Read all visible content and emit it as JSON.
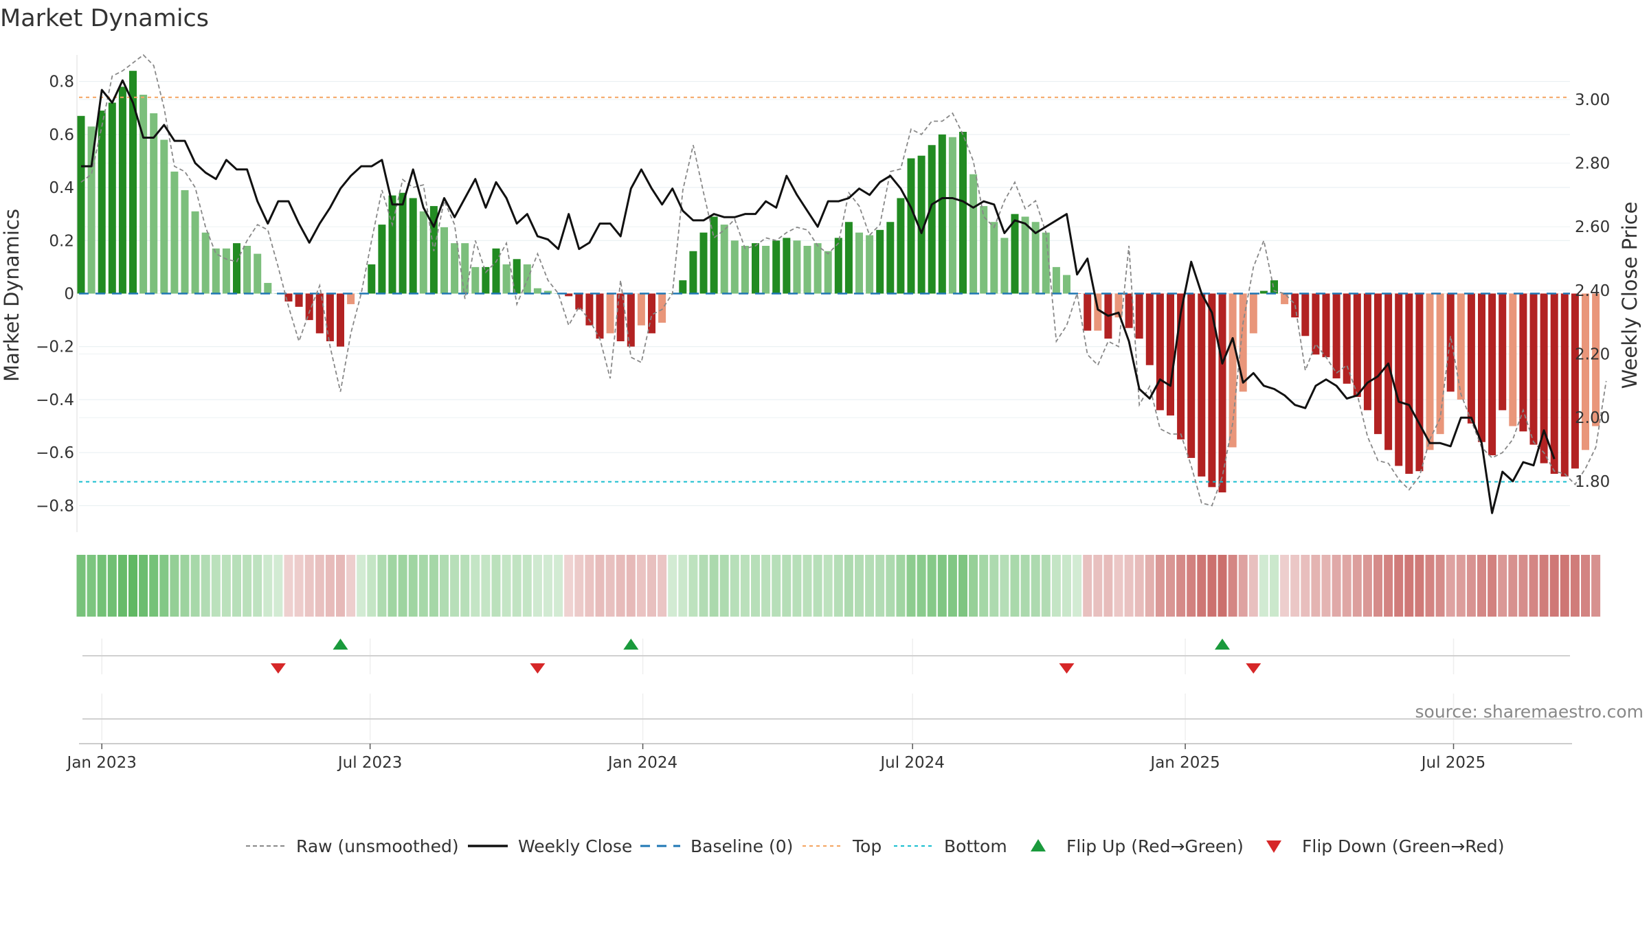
{
  "chart_data": {
    "type": "bar",
    "title": "Market Dynamics",
    "ylabel": "Market Dynamics",
    "ylabel_right": "Weekly Close Price",
    "ylim": [
      -0.9,
      0.9
    ],
    "ylim_right": [
      1.64,
      3.14
    ],
    "yticks": [
      -0.8,
      -0.6,
      -0.4,
      -0.2,
      0,
      0.2,
      0.4,
      0.6,
      0.8
    ],
    "ytick_labels": [
      "−0.8",
      "−0.6",
      "−0.4",
      "−0.2",
      "0",
      "0.2",
      "0.4",
      "0.6",
      "0.8"
    ],
    "yticks_right": [
      1.8,
      2.0,
      2.2,
      2.4,
      2.6,
      2.8,
      3.0
    ],
    "ytick_labels_right": [
      "1.80",
      "2.00",
      "2.20",
      "2.40",
      "2.60",
      "2.80",
      "3.00"
    ],
    "x_ticks": [
      {
        "date": "2023-01-01",
        "label": "Jan 2023"
      },
      {
        "date": "2023-07-01",
        "label": "Jul 2023"
      },
      {
        "date": "2024-01-01",
        "label": "Jan 2024"
      },
      {
        "date": "2024-07-01",
        "label": "Jul 2024"
      },
      {
        "date": "2025-01-01",
        "label": "Jan 2025"
      },
      {
        "date": "2025-07-01",
        "label": "Jul 2025"
      }
    ],
    "start_date": "2022-12-18",
    "week_interval_days": 7,
    "grid": true,
    "legend_position": "bottom",
    "top_level": 0.74,
    "bottom_level": -0.71,
    "baseline": 0,
    "series": [
      {
        "name": "Market Dynamics (smoothed)",
        "values": [
          0.67,
          0.63,
          0.69,
          0.72,
          0.78,
          0.84,
          0.75,
          0.68,
          0.58,
          0.46,
          0.39,
          0.31,
          0.23,
          0.17,
          0.17,
          0.19,
          0.18,
          0.15,
          0.04,
          0.0,
          -0.03,
          -0.05,
          -0.1,
          -0.15,
          -0.18,
          -0.2,
          -0.04,
          0.0,
          0.11,
          0.26,
          0.37,
          0.38,
          0.36,
          0.31,
          0.33,
          0.25,
          0.19,
          0.19,
          0.1,
          0.1,
          0.17,
          0.11,
          0.13,
          0.11,
          0.02,
          0.01,
          0.0,
          -0.01,
          -0.06,
          -0.12,
          -0.17,
          -0.15,
          -0.18,
          -0.2,
          -0.12,
          -0.15,
          -0.11,
          0.0,
          0.05,
          0.16,
          0.23,
          0.29,
          0.26,
          0.2,
          0.18,
          0.19,
          0.18,
          0.2,
          0.21,
          0.2,
          0.18,
          0.19,
          0.16,
          0.21,
          0.27,
          0.23,
          0.22,
          0.24,
          0.27,
          0.36,
          0.51,
          0.52,
          0.56,
          0.6,
          0.59,
          0.61,
          0.45,
          0.33,
          0.27,
          0.21,
          0.3,
          0.29,
          0.27,
          0.23,
          0.1,
          0.07,
          0.0,
          -0.14,
          -0.14,
          -0.17,
          -0.09,
          -0.13,
          -0.17,
          -0.27,
          -0.44,
          -0.46,
          -0.55,
          -0.62,
          -0.69,
          -0.73,
          -0.75,
          -0.58,
          -0.37,
          -0.15,
          0.01,
          0.05,
          -0.04,
          -0.09,
          -0.16,
          -0.23,
          -0.24,
          -0.32,
          -0.34,
          -0.39,
          -0.44,
          -0.53,
          -0.59,
          -0.65,
          -0.68,
          -0.67,
          -0.59,
          -0.53,
          -0.37,
          -0.4,
          -0.49,
          -0.56,
          -0.61,
          -0.44,
          -0.5,
          -0.52,
          -0.57,
          -0.64,
          -0.68,
          -0.69,
          -0.66,
          -0.59,
          -0.5
        ],
        "states": [
          "G",
          "g",
          "G",
          "G",
          "G",
          "G",
          "g",
          "g",
          "g",
          "g",
          "g",
          "g",
          "g",
          "g",
          "g",
          "G",
          "g",
          "g",
          "g",
          "g",
          "R",
          "R",
          "R",
          "R",
          "R",
          "R",
          "r",
          "g",
          "G",
          "G",
          "G",
          "G",
          "G",
          "g",
          "G",
          "g",
          "g",
          "g",
          "g",
          "G",
          "G",
          "g",
          "G",
          "g",
          "g",
          "g",
          "g",
          "R",
          "R",
          "R",
          "R",
          "r",
          "R",
          "R",
          "r",
          "R",
          "r",
          "G",
          "G",
          "G",
          "G",
          "G",
          "g",
          "g",
          "g",
          "G",
          "g",
          "G",
          "G",
          "g",
          "g",
          "g",
          "g",
          "G",
          "G",
          "g",
          "g",
          "G",
          "G",
          "G",
          "G",
          "G",
          "G",
          "G",
          "g",
          "G",
          "g",
          "g",
          "g",
          "g",
          "G",
          "g",
          "g",
          "g",
          "g",
          "g",
          "R",
          "R",
          "r",
          "R",
          "r",
          "R",
          "R",
          "R",
          "R",
          "R",
          "R",
          "R",
          "R",
          "R",
          "R",
          "r",
          "r",
          "r",
          "G",
          "G",
          "r",
          "R",
          "R",
          "R",
          "R",
          "R",
          "R",
          "R",
          "R",
          "R",
          "R",
          "R",
          "R",
          "R",
          "r",
          "r",
          "R",
          "r",
          "R",
          "R",
          "R",
          "R",
          "r",
          "R",
          "R",
          "R",
          "R",
          "R",
          "R",
          "r",
          "r",
          "r"
        ]
      },
      {
        "name": "Raw (unsmoothed)",
        "values": [
          0.42,
          0.45,
          0.63,
          0.82,
          0.84,
          0.87,
          0.9,
          0.86,
          0.7,
          0.48,
          0.46,
          0.4,
          0.25,
          0.15,
          0.13,
          0.12,
          0.2,
          0.26,
          0.24,
          0.1,
          -0.05,
          -0.18,
          -0.07,
          0.03,
          -0.2,
          -0.37,
          -0.15,
          0.0,
          0.2,
          0.39,
          0.26,
          0.43,
          0.4,
          0.41,
          0.16,
          0.35,
          0.26,
          -0.02,
          0.2,
          0.08,
          0.12,
          0.19,
          -0.04,
          0.05,
          0.15,
          0.05,
          0.0,
          -0.12,
          -0.05,
          -0.1,
          -0.17,
          -0.32,
          0.05,
          -0.24,
          -0.26,
          -0.08,
          -0.06,
          0.0,
          0.39,
          0.56,
          0.38,
          0.21,
          0.24,
          0.28,
          0.17,
          0.18,
          0.21,
          0.2,
          0.23,
          0.25,
          0.24,
          0.18,
          0.15,
          0.19,
          0.38,
          0.33,
          0.22,
          0.26,
          0.46,
          0.47,
          0.62,
          0.6,
          0.65,
          0.65,
          0.68,
          0.6,
          0.5,
          0.29,
          0.25,
          0.35,
          0.42,
          0.32,
          0.35,
          0.23,
          -0.18,
          -0.12,
          0.0,
          -0.23,
          -0.27,
          -0.18,
          -0.2,
          0.18,
          -0.42,
          -0.35,
          -0.51,
          -0.53,
          -0.53,
          -0.65,
          -0.79,
          -0.8,
          -0.69,
          -0.49,
          -0.11,
          0.1,
          0.2,
          0.01,
          0.0,
          -0.04,
          -0.29,
          -0.19,
          -0.24,
          -0.3,
          -0.27,
          -0.38,
          -0.54,
          -0.63,
          -0.64,
          -0.7,
          -0.74,
          -0.69,
          -0.55,
          -0.47,
          -0.16,
          -0.38,
          -0.48,
          -0.58,
          -0.62,
          -0.6,
          -0.55,
          -0.44,
          -0.56,
          -0.6,
          -0.67,
          -0.68,
          -0.72,
          -0.66,
          -0.58,
          -0.33
        ]
      },
      {
        "name": "Weekly Close",
        "values": [
          2.79,
          2.79,
          3.03,
          2.99,
          3.06,
          2.99,
          2.88,
          2.88,
          2.92,
          2.87,
          2.87,
          2.8,
          2.77,
          2.75,
          2.81,
          2.78,
          2.78,
          2.68,
          2.61,
          2.68,
          2.68,
          2.61,
          2.55,
          2.61,
          2.66,
          2.72,
          2.76,
          2.79,
          2.79,
          2.81,
          2.67,
          2.67,
          2.78,
          2.66,
          2.6,
          2.69,
          2.63,
          2.69,
          2.75,
          2.66,
          2.74,
          2.69,
          2.61,
          2.64,
          2.57,
          2.56,
          2.53,
          2.64,
          2.53,
          2.55,
          2.61,
          2.61,
          2.57,
          2.72,
          2.78,
          2.72,
          2.67,
          2.72,
          2.65,
          2.62,
          2.62,
          2.64,
          2.63,
          2.63,
          2.64,
          2.64,
          2.68,
          2.66,
          2.76,
          2.7,
          2.65,
          2.6,
          2.68,
          2.68,
          2.69,
          2.72,
          2.7,
          2.74,
          2.76,
          2.72,
          2.66,
          2.58,
          2.67,
          2.69,
          2.69,
          2.68,
          2.66,
          2.68,
          2.67,
          2.58,
          2.62,
          2.61,
          2.58,
          2.6,
          2.62,
          2.64,
          2.45,
          2.5,
          2.34,
          2.32,
          2.33,
          2.24,
          2.09,
          2.06,
          2.12,
          2.1,
          2.33,
          2.49,
          2.39,
          2.33,
          2.17,
          2.25,
          2.11,
          2.14,
          2.1,
          2.09,
          2.07,
          2.04,
          2.03,
          2.1,
          2.12,
          2.1,
          2.06,
          2.07,
          2.11,
          2.13,
          2.17,
          2.05,
          2.04,
          1.98,
          1.92,
          1.92,
          1.91,
          2.0,
          2.0,
          1.92,
          1.7,
          1.83,
          1.8,
          1.86,
          1.85,
          1.96,
          1.87
        ]
      }
    ],
    "flips_up": [
      "2023-06-11",
      "2023-12-24",
      "2025-01-26"
    ],
    "flips_down": [
      "2023-04-30",
      "2023-10-22",
      "2024-10-13",
      "2025-02-16"
    ],
    "colors": {
      "green_dark": "#228B22",
      "green_light": "#7CBF7C",
      "red_dark": "#B22222",
      "red_light": "#E9967A",
      "raw_line": "#888888",
      "close_line": "#111111",
      "baseline": "#1f77b4",
      "top": "#F4A460",
      "bottom": "#17BECF",
      "flip_up": "#1a9a3c",
      "flip_down": "#d62728",
      "strip_green": "#4CAF50",
      "strip_red": "#C0504D"
    }
  },
  "legend": [
    {
      "key": "raw",
      "label": "Raw (unsmoothed)"
    },
    {
      "key": "close",
      "label": "Weekly Close"
    },
    {
      "key": "baseline",
      "label": "Baseline (0)"
    },
    {
      "key": "top",
      "label": "Top"
    },
    {
      "key": "bottom",
      "label": "Bottom"
    },
    {
      "key": "flip_up",
      "label": "Flip Up (Red→Green)"
    },
    {
      "key": "flip_down",
      "label": "Flip Down (Green→Red)"
    }
  ],
  "source_text": "source: sharemaestro.com"
}
